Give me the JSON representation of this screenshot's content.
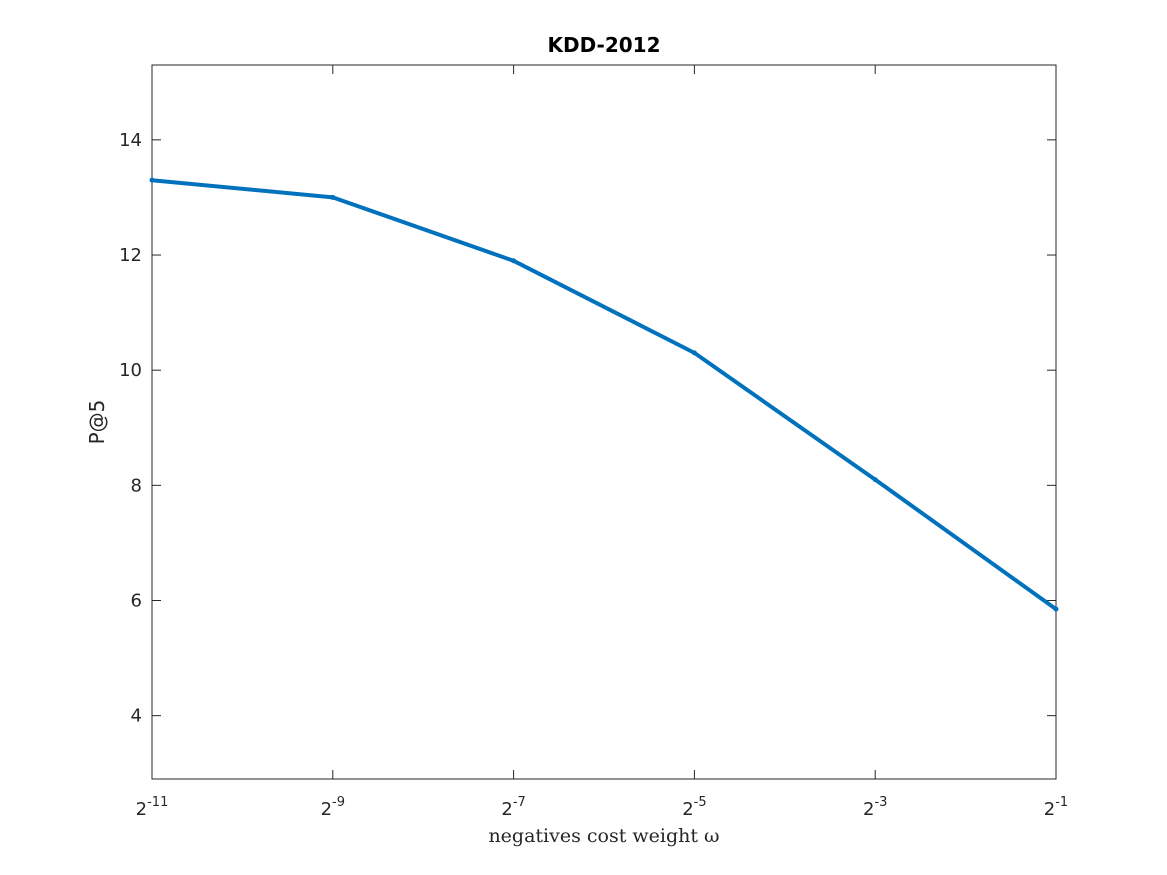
{
  "chart_data": {
    "type": "line",
    "title": "KDD-2012",
    "xlabel": "negatives cost weight ω",
    "ylabel": "P@5",
    "x_scale": "log2",
    "x_ticks": [
      {
        "base": "2",
        "exp": "-11"
      },
      {
        "base": "2",
        "exp": "-9"
      },
      {
        "base": "2",
        "exp": "-7"
      },
      {
        "base": "2",
        "exp": "-5"
      },
      {
        "base": "2",
        "exp": "-3"
      },
      {
        "base": "2",
        "exp": "-1"
      }
    ],
    "y_ticks": [
      "4",
      "6",
      "8",
      "10",
      "12",
      "14"
    ],
    "y_tick_values": [
      4,
      6,
      8,
      10,
      12,
      14
    ],
    "ylim": [
      2.9,
      15.3
    ],
    "x_exponent_range": [
      -11,
      -1
    ],
    "grid": false,
    "series": [
      {
        "color": "#0072BD",
        "x_exponents": [
          -11,
          -9,
          -7,
          -5,
          -3,
          -1
        ],
        "values": [
          13.3,
          13.0,
          11.9,
          10.3,
          8.1,
          5.85
        ]
      }
    ]
  }
}
